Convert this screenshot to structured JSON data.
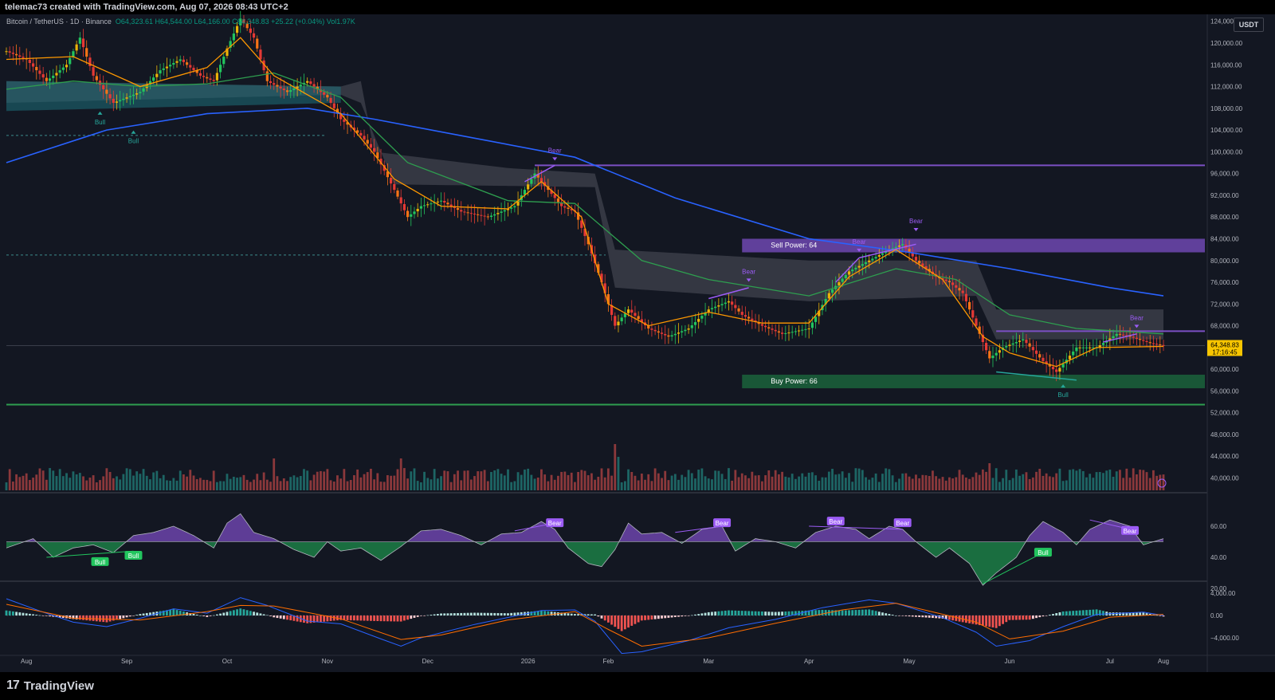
{
  "header": {
    "credit": "telemac73 created with TradingView.com, Aug 07, 2026 08:43 UTC+2"
  },
  "legend": {
    "symbol": "Bitcoin / TetherUS · 1D · Binance",
    "open": "O64,323.61",
    "high": "H64,544.00",
    "low": "L64,166.00",
    "close": "C64,348.83",
    "change": "+25.22 (+0.04%)",
    "volume": "Vol1.97K"
  },
  "currency_badge": "USDT",
  "last_price": {
    "value": "64,348.83",
    "countdown": "17:16:45"
  },
  "brand": "TradingView",
  "colors": {
    "up": "#26a69a",
    "down": "#ef5350",
    "ema_fast": "#ff9800",
    "ema_mid": "#2e9e4f",
    "ema_slow": "#2962ff",
    "sell_zone": "#7b4fc4",
    "buy_zone": "#1b5e3a",
    "bear_label": "#9c5cf5",
    "bull_label": "#22c55e"
  },
  "chart_data": {
    "type": "candlestick",
    "price_axis_ticks": [
      "124,000.00",
      "120,000.00",
      "116,000.00",
      "112,000.00",
      "108,000.00",
      "104,000.00",
      "100,000.00",
      "96,000.00",
      "92,000.00",
      "88,000.00",
      "84,000.00",
      "80,000.00",
      "76,000.00",
      "72,000.00",
      "68,000.00",
      "64,000.00",
      "60,000.00",
      "56,000.00",
      "52,000.00",
      "48,000.00",
      "44,000.00",
      "40,000.00"
    ],
    "price_ticks_values": [
      124000,
      120000,
      116000,
      112000,
      108000,
      104000,
      100000,
      96000,
      92000,
      88000,
      84000,
      80000,
      76000,
      72000,
      68000,
      64000,
      60000,
      56000,
      52000,
      48000,
      44000,
      40000
    ],
    "x_ticks": [
      "Aug",
      "Sep",
      "Oct",
      "Nov",
      "Dec",
      "2026",
      "Feb",
      "Mar",
      "Apr",
      "May",
      "Jun",
      "Jul",
      "Aug"
    ],
    "price_path": [
      [
        0,
        118500
      ],
      [
        6,
        117000
      ],
      [
        12,
        113000
      ],
      [
        18,
        116000
      ],
      [
        22,
        121000
      ],
      [
        26,
        114000
      ],
      [
        32,
        109000
      ],
      [
        40,
        111000
      ],
      [
        46,
        115000
      ],
      [
        52,
        117000
      ],
      [
        58,
        114000
      ],
      [
        62,
        113000
      ],
      [
        66,
        119000
      ],
      [
        70,
        124500
      ],
      [
        74,
        121000
      ],
      [
        78,
        113000
      ],
      [
        84,
        111000
      ],
      [
        90,
        113000
      ],
      [
        96,
        110000
      ],
      [
        100,
        106000
      ],
      [
        106,
        103000
      ],
      [
        110,
        100000
      ],
      [
        116,
        93000
      ],
      [
        120,
        88000
      ],
      [
        124,
        90000
      ],
      [
        130,
        91000
      ],
      [
        136,
        89000
      ],
      [
        144,
        88000
      ],
      [
        152,
        90000
      ],
      [
        158,
        96000
      ],
      [
        162,
        93000
      ],
      [
        166,
        90000
      ],
      [
        170,
        89000
      ],
      [
        174,
        83000
      ],
      [
        178,
        76000
      ],
      [
        182,
        68000
      ],
      [
        186,
        71000
      ],
      [
        192,
        67500
      ],
      [
        198,
        66000
      ],
      [
        204,
        67500
      ],
      [
        210,
        71000
      ],
      [
        216,
        72500
      ],
      [
        220,
        70000
      ],
      [
        226,
        68000
      ],
      [
        232,
        66500
      ],
      [
        240,
        67500
      ],
      [
        246,
        74000
      ],
      [
        252,
        78000
      ],
      [
        258,
        80000
      ],
      [
        264,
        82000
      ],
      [
        268,
        83000
      ],
      [
        272,
        80000
      ],
      [
        278,
        77000
      ],
      [
        282,
        76000
      ],
      [
        286,
        74000
      ],
      [
        290,
        68000
      ],
      [
        294,
        62000
      ],
      [
        298,
        64000
      ],
      [
        304,
        65500
      ],
      [
        310,
        61500
      ],
      [
        314,
        59500
      ],
      [
        320,
        64000
      ],
      [
        326,
        64000
      ],
      [
        332,
        66500
      ],
      [
        336,
        66000
      ],
      [
        342,
        64800
      ],
      [
        346,
        64348.83
      ]
    ],
    "lows_marker_price": 62500,
    "ema_fast": [
      [
        0,
        117000
      ],
      [
        20,
        117500
      ],
      [
        40,
        112000
      ],
      [
        60,
        115500
      ],
      [
        70,
        121000
      ],
      [
        80,
        114000
      ],
      [
        100,
        107000
      ],
      [
        116,
        95000
      ],
      [
        130,
        90000
      ],
      [
        150,
        89500
      ],
      [
        160,
        94500
      ],
      [
        172,
        88000
      ],
      [
        180,
        72000
      ],
      [
        192,
        68000
      ],
      [
        210,
        70500
      ],
      [
        226,
        68500
      ],
      [
        240,
        68500
      ],
      [
        252,
        77000
      ],
      [
        266,
        82000
      ],
      [
        280,
        76500
      ],
      [
        292,
        66000
      ],
      [
        300,
        63000
      ],
      [
        314,
        60500
      ],
      [
        326,
        64000
      ],
      [
        346,
        64200
      ]
    ],
    "ema_mid": [
      [
        0,
        111500
      ],
      [
        20,
        113000
      ],
      [
        40,
        112000
      ],
      [
        60,
        112500
      ],
      [
        80,
        114500
      ],
      [
        100,
        110000
      ],
      [
        120,
        98000
      ],
      [
        150,
        91000
      ],
      [
        170,
        90500
      ],
      [
        190,
        80000
      ],
      [
        210,
        76500
      ],
      [
        240,
        73500
      ],
      [
        266,
        78500
      ],
      [
        284,
        76500
      ],
      [
        300,
        70000
      ],
      [
        320,
        67500
      ],
      [
        346,
        66500
      ]
    ],
    "ema_slow": [
      [
        0,
        98000
      ],
      [
        30,
        104000
      ],
      [
        60,
        107000
      ],
      [
        90,
        108000
      ],
      [
        110,
        106000
      ],
      [
        140,
        102500
      ],
      [
        170,
        99000
      ],
      [
        200,
        91500
      ],
      [
        240,
        84000
      ],
      [
        270,
        81500
      ],
      [
        300,
        78500
      ],
      [
        330,
        75000
      ],
      [
        346,
        73500
      ]
    ],
    "cloud_upper": [
      [
        0,
        113000
      ],
      [
        100,
        112000
      ],
      [
        106,
        113000
      ],
      [
        110,
        100000
      ],
      [
        150,
        97000
      ],
      [
        176,
        96000
      ],
      [
        182,
        82000
      ],
      [
        240,
        80000
      ],
      [
        290,
        80000
      ],
      [
        296,
        71000
      ],
      [
        346,
        71000
      ]
    ],
    "cloud_lower": [
      [
        0,
        109000
      ],
      [
        100,
        110500
      ],
      [
        106,
        109000
      ],
      [
        116,
        94000
      ],
      [
        176,
        93500
      ],
      [
        182,
        75000
      ],
      [
        240,
        72500
      ],
      [
        290,
        73500
      ],
      [
        296,
        65500
      ],
      [
        346,
        65500
      ]
    ],
    "horizontal_levels": {
      "upper_purple": 97500,
      "sell_zone_top": 84000,
      "sell_zone_bottom": 81500,
      "resistance_right": 67000,
      "buy_zone_top": 59000,
      "buy_zone_bottom": 56500,
      "support_green": 53500
    },
    "zone_labels": {
      "sell": "Sell Power: 64",
      "buy": "Buy Power: 66"
    },
    "signals": {
      "bear": "Bear",
      "bull": "Bull"
    },
    "rsi_axis_ticks": [
      "60.00",
      "40.00",
      "20.00"
    ],
    "rsi_ticks_values": [
      60,
      40,
      20
    ],
    "rsi_midline": 50,
    "rsi_path": [
      [
        0,
        46
      ],
      [
        8,
        52
      ],
      [
        14,
        40
      ],
      [
        20,
        46
      ],
      [
        26,
        48
      ],
      [
        32,
        43
      ],
      [
        38,
        54
      ],
      [
        44,
        56
      ],
      [
        50,
        60
      ],
      [
        56,
        54
      ],
      [
        62,
        46
      ],
      [
        66,
        62
      ],
      [
        70,
        68
      ],
      [
        74,
        56
      ],
      [
        80,
        52
      ],
      [
        86,
        45
      ],
      [
        92,
        40
      ],
      [
        96,
        50
      ],
      [
        100,
        44
      ],
      [
        106,
        46
      ],
      [
        112,
        38
      ],
      [
        118,
        47
      ],
      [
        124,
        57
      ],
      [
        130,
        58
      ],
      [
        136,
        54
      ],
      [
        142,
        48
      ],
      [
        148,
        55
      ],
      [
        154,
        56
      ],
      [
        160,
        63
      ],
      [
        164,
        58
      ],
      [
        168,
        46
      ],
      [
        174,
        36
      ],
      [
        178,
        34
      ],
      [
        182,
        45
      ],
      [
        186,
        62
      ],
      [
        190,
        55
      ],
      [
        196,
        56
      ],
      [
        202,
        49
      ],
      [
        208,
        58
      ],
      [
        214,
        60
      ],
      [
        218,
        44
      ],
      [
        224,
        52
      ],
      [
        230,
        50
      ],
      [
        236,
        46
      ],
      [
        242,
        56
      ],
      [
        248,
        60
      ],
      [
        254,
        58
      ],
      [
        258,
        52
      ],
      [
        264,
        60
      ],
      [
        268,
        58
      ],
      [
        272,
        50
      ],
      [
        278,
        40
      ],
      [
        282,
        46
      ],
      [
        288,
        36
      ],
      [
        292,
        22
      ],
      [
        296,
        30
      ],
      [
        302,
        40
      ],
      [
        306,
        54
      ],
      [
        310,
        63
      ],
      [
        316,
        56
      ],
      [
        320,
        48
      ],
      [
        324,
        58
      ],
      [
        330,
        64
      ],
      [
        336,
        60
      ],
      [
        340,
        48
      ],
      [
        346,
        52
      ]
    ],
    "macd_axis_ticks": [
      "4,000.00",
      "0.00",
      "−4,000.00"
    ],
    "macd_ticks_values": [
      4000,
      0,
      -4000
    ],
    "macd_line": [
      [
        0,
        3000
      ],
      [
        10,
        800
      ],
      [
        20,
        -1200
      ],
      [
        30,
        -2000
      ],
      [
        40,
        -500
      ],
      [
        50,
        1200
      ],
      [
        60,
        400
      ],
      [
        70,
        3200
      ],
      [
        78,
        1800
      ],
      [
        90,
        -1000
      ],
      [
        100,
        -1500
      ],
      [
        112,
        -4200
      ],
      [
        118,
        -5500
      ],
      [
        124,
        -4000
      ],
      [
        140,
        -1600
      ],
      [
        160,
        900
      ],
      [
        170,
        1000
      ],
      [
        176,
        -1000
      ],
      [
        184,
        -6800
      ],
      [
        190,
        -6500
      ],
      [
        204,
        -4500
      ],
      [
        216,
        -2200
      ],
      [
        230,
        -700
      ],
      [
        244,
        1400
      ],
      [
        258,
        2800
      ],
      [
        266,
        2200
      ],
      [
        280,
        -400
      ],
      [
        290,
        -3000
      ],
      [
        296,
        -5500
      ],
      [
        306,
        -4500
      ],
      [
        316,
        -2000
      ],
      [
        326,
        200
      ],
      [
        340,
        600
      ],
      [
        346,
        0
      ]
    ],
    "macd_signal": [
      [
        0,
        2000
      ],
      [
        20,
        -500
      ],
      [
        40,
        -800
      ],
      [
        60,
        700
      ],
      [
        70,
        1800
      ],
      [
        80,
        1700
      ],
      [
        100,
        -600
      ],
      [
        118,
        -4300
      ],
      [
        130,
        -3500
      ],
      [
        150,
        -800
      ],
      [
        170,
        700
      ],
      [
        180,
        -2500
      ],
      [
        190,
        -5500
      ],
      [
        210,
        -4000
      ],
      [
        230,
        -1400
      ],
      [
        250,
        1000
      ],
      [
        266,
        2200
      ],
      [
        290,
        -1200
      ],
      [
        300,
        -4200
      ],
      [
        316,
        -2800
      ],
      [
        330,
        -300
      ],
      [
        346,
        200
      ]
    ],
    "volume_max": 100
  }
}
